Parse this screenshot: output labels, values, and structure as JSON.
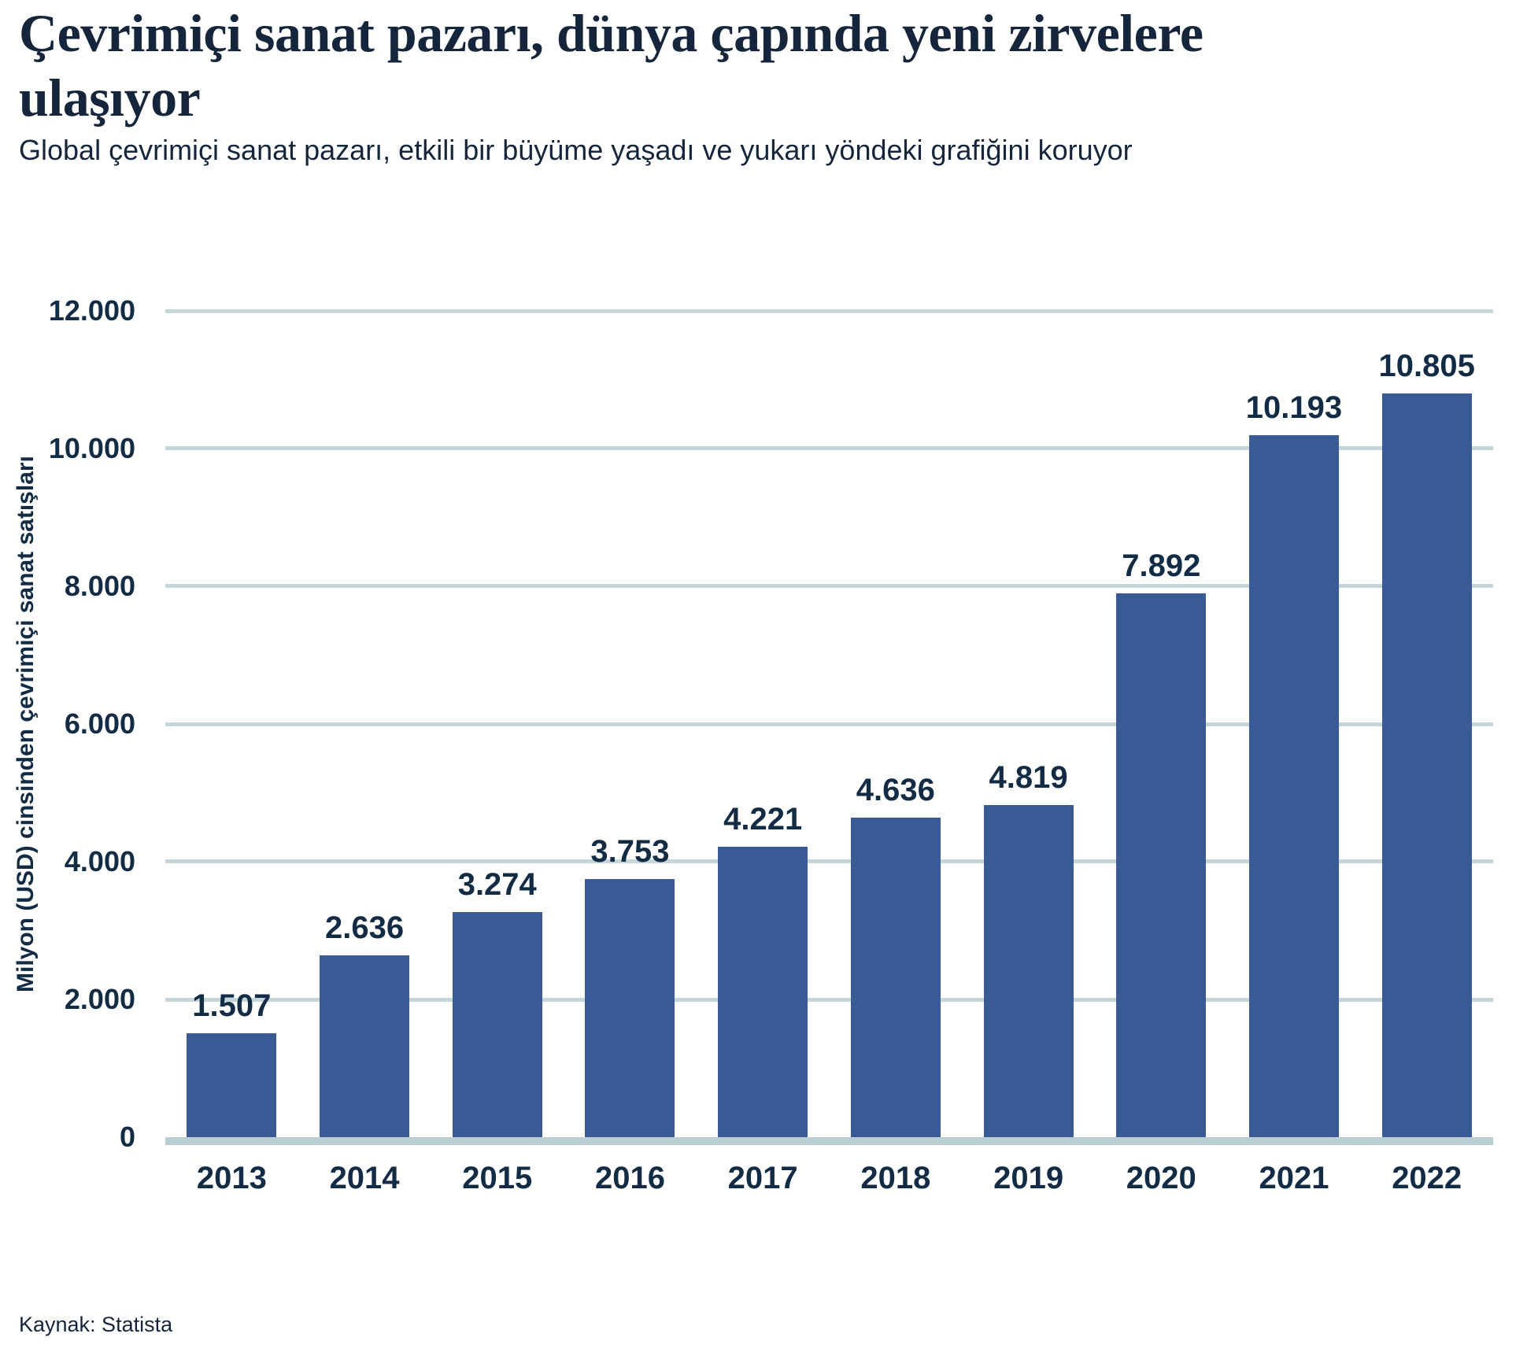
{
  "header": {
    "title_lines": [
      "Çevrimiçi sanat pazarı, dünya çapında yeni zirvelere",
      "ulaşıyor"
    ],
    "subtitle": "Global çevrimiçi sanat pazarı, etkili bir büyüme yaşadı ve yukarı yöndeki grafiğini koruyor"
  },
  "chart_data": {
    "type": "bar",
    "categories": [
      "2013",
      "2014",
      "2015",
      "2016",
      "2017",
      "2018",
      "2019",
      "2020",
      "2021",
      "2022"
    ],
    "values": [
      1507,
      2636,
      3274,
      3753,
      4221,
      4636,
      4819,
      7892,
      10193,
      10805
    ],
    "value_labels": [
      "1.507",
      "2.636",
      "3.274",
      "3.753",
      "4.221",
      "4.636",
      "4.819",
      "7.892",
      "10.193",
      "10.805"
    ],
    "title": "Çevrimiçi sanat pazarı, dünya çapında yeni zirvelere ulaşıyor",
    "xlabel": "",
    "ylabel": "Milyon (USD) cinsinden çevrimiçi sanat satışları",
    "ylim": [
      0,
      12000
    ],
    "yticks": [
      0,
      2000,
      4000,
      6000,
      8000,
      10000,
      12000
    ],
    "ytick_labels": [
      "0",
      "2.000",
      "4.000",
      "6.000",
      "8.000",
      "10.000",
      "12.000"
    ],
    "grid": true,
    "legend": false
  },
  "source": {
    "label": "Kaynak: Statista"
  },
  "colors": {
    "background": "#ffffff",
    "bar": "#3a5a96",
    "gridline": "#c4d6d9",
    "baseline": "#b9ced2",
    "title_text": "#15263c",
    "chart_text": "#132c45"
  }
}
